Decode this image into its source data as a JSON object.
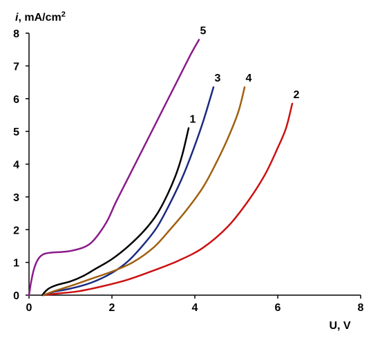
{
  "chart_data": {
    "type": "line",
    "ylabel": "i, mA/cm²",
    "xlabel": "U, V",
    "xlim": [
      0,
      8
    ],
    "ylim": [
      0,
      8
    ],
    "x_ticks": [
      0,
      2,
      4,
      6,
      8
    ],
    "y_ticks": [
      0,
      1,
      2,
      3,
      4,
      5,
      6,
      7,
      8
    ],
    "grid": false,
    "series": [
      {
        "name": "1",
        "color": "#000000",
        "points": [
          [
            0.32,
            0
          ],
          [
            0.4,
            0.12
          ],
          [
            0.5,
            0.22
          ],
          [
            0.7,
            0.32
          ],
          [
            1.0,
            0.42
          ],
          [
            1.3,
            0.58
          ],
          [
            1.6,
            0.8
          ],
          [
            2.0,
            1.1
          ],
          [
            2.4,
            1.5
          ],
          [
            2.8,
            2.0
          ],
          [
            3.1,
            2.5
          ],
          [
            3.35,
            3.1
          ],
          [
            3.55,
            3.7
          ],
          [
            3.7,
            4.3
          ],
          [
            3.85,
            5.1
          ]
        ]
      },
      {
        "name": "2",
        "color": "#cc1010",
        "points": [
          [
            0.35,
            0
          ],
          [
            0.7,
            0.05
          ],
          [
            1.2,
            0.12
          ],
          [
            1.8,
            0.28
          ],
          [
            2.4,
            0.48
          ],
          [
            3.0,
            0.75
          ],
          [
            3.6,
            1.05
          ],
          [
            4.2,
            1.45
          ],
          [
            4.8,
            2.1
          ],
          [
            5.3,
            2.9
          ],
          [
            5.7,
            3.7
          ],
          [
            6.0,
            4.5
          ],
          [
            6.2,
            5.1
          ],
          [
            6.35,
            5.85
          ]
        ]
      },
      {
        "name": "3",
        "color": "#1a2a80",
        "points": [
          [
            0.35,
            0
          ],
          [
            0.6,
            0.1
          ],
          [
            1.0,
            0.2
          ],
          [
            1.5,
            0.38
          ],
          [
            2.0,
            0.68
          ],
          [
            2.4,
            1.05
          ],
          [
            2.8,
            1.6
          ],
          [
            3.1,
            2.1
          ],
          [
            3.4,
            2.8
          ],
          [
            3.7,
            3.6
          ],
          [
            3.95,
            4.4
          ],
          [
            4.2,
            5.3
          ],
          [
            4.45,
            6.35
          ]
        ]
      },
      {
        "name": "4",
        "color": "#a06010",
        "points": [
          [
            0.35,
            0
          ],
          [
            0.6,
            0.12
          ],
          [
            1.0,
            0.28
          ],
          [
            1.5,
            0.5
          ],
          [
            2.0,
            0.72
          ],
          [
            2.5,
            1.0
          ],
          [
            3.0,
            1.45
          ],
          [
            3.4,
            2.0
          ],
          [
            3.8,
            2.6
          ],
          [
            4.2,
            3.3
          ],
          [
            4.5,
            4.0
          ],
          [
            4.8,
            4.8
          ],
          [
            5.05,
            5.6
          ],
          [
            5.2,
            6.35
          ]
        ]
      },
      {
        "name": "5",
        "color": "#8a1a8a",
        "points": [
          [
            0,
            0
          ],
          [
            0.05,
            0.4
          ],
          [
            0.12,
            0.8
          ],
          [
            0.22,
            1.1
          ],
          [
            0.35,
            1.25
          ],
          [
            0.55,
            1.3
          ],
          [
            0.8,
            1.32
          ],
          [
            1.0,
            1.35
          ],
          [
            1.3,
            1.45
          ],
          [
            1.5,
            1.6
          ],
          [
            1.7,
            1.9
          ],
          [
            1.9,
            2.3
          ],
          [
            2.1,
            2.85
          ],
          [
            2.4,
            3.6
          ],
          [
            2.7,
            4.35
          ],
          [
            3.0,
            5.1
          ],
          [
            3.3,
            5.85
          ],
          [
            3.6,
            6.6
          ],
          [
            3.9,
            7.35
          ],
          [
            4.1,
            7.8
          ]
        ]
      }
    ]
  }
}
